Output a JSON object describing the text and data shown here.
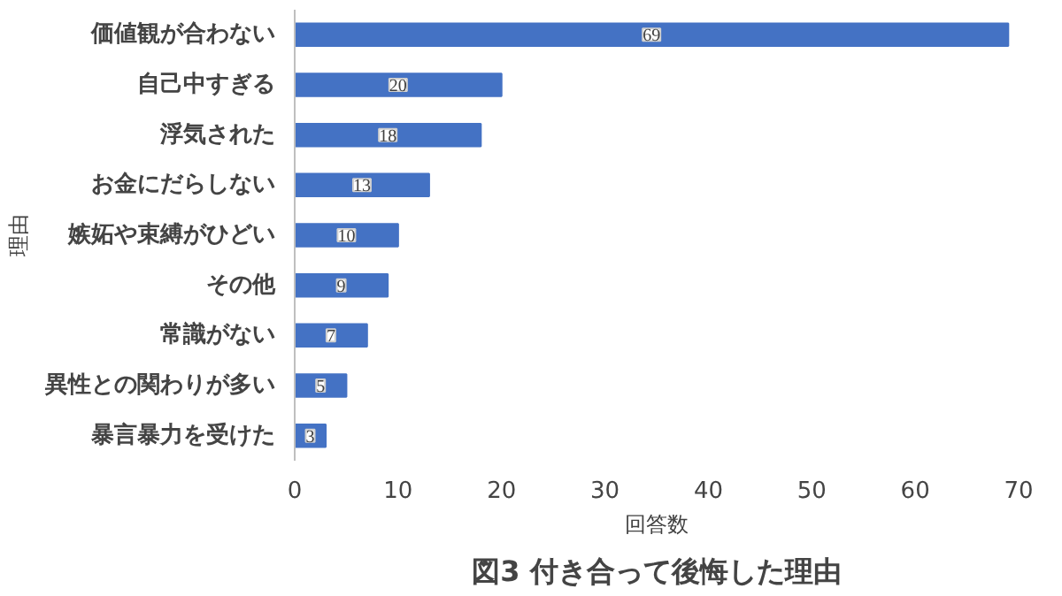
{
  "chart_data": {
    "type": "bar",
    "orientation": "horizontal",
    "title": "図3 付き合って後悔した理由",
    "xlabel": "回答数",
    "ylabel": "理由",
    "categories": [
      "価値観が合わない",
      "自己中すぎる",
      "浮気された",
      "お金にだらしない",
      "嫉妬や束縛がひどい",
      "その他",
      "常識がない",
      "異性との関わりが多い",
      "暴言暴力を受けた"
    ],
    "values": [
      69,
      20,
      18,
      13,
      10,
      9,
      7,
      5,
      3
    ],
    "color": "#4472c4",
    "xlim": [
      0,
      70
    ],
    "xticks": [
      0,
      10,
      20,
      30,
      40,
      50,
      60,
      70
    ],
    "grid": false,
    "data_labels": true
  }
}
